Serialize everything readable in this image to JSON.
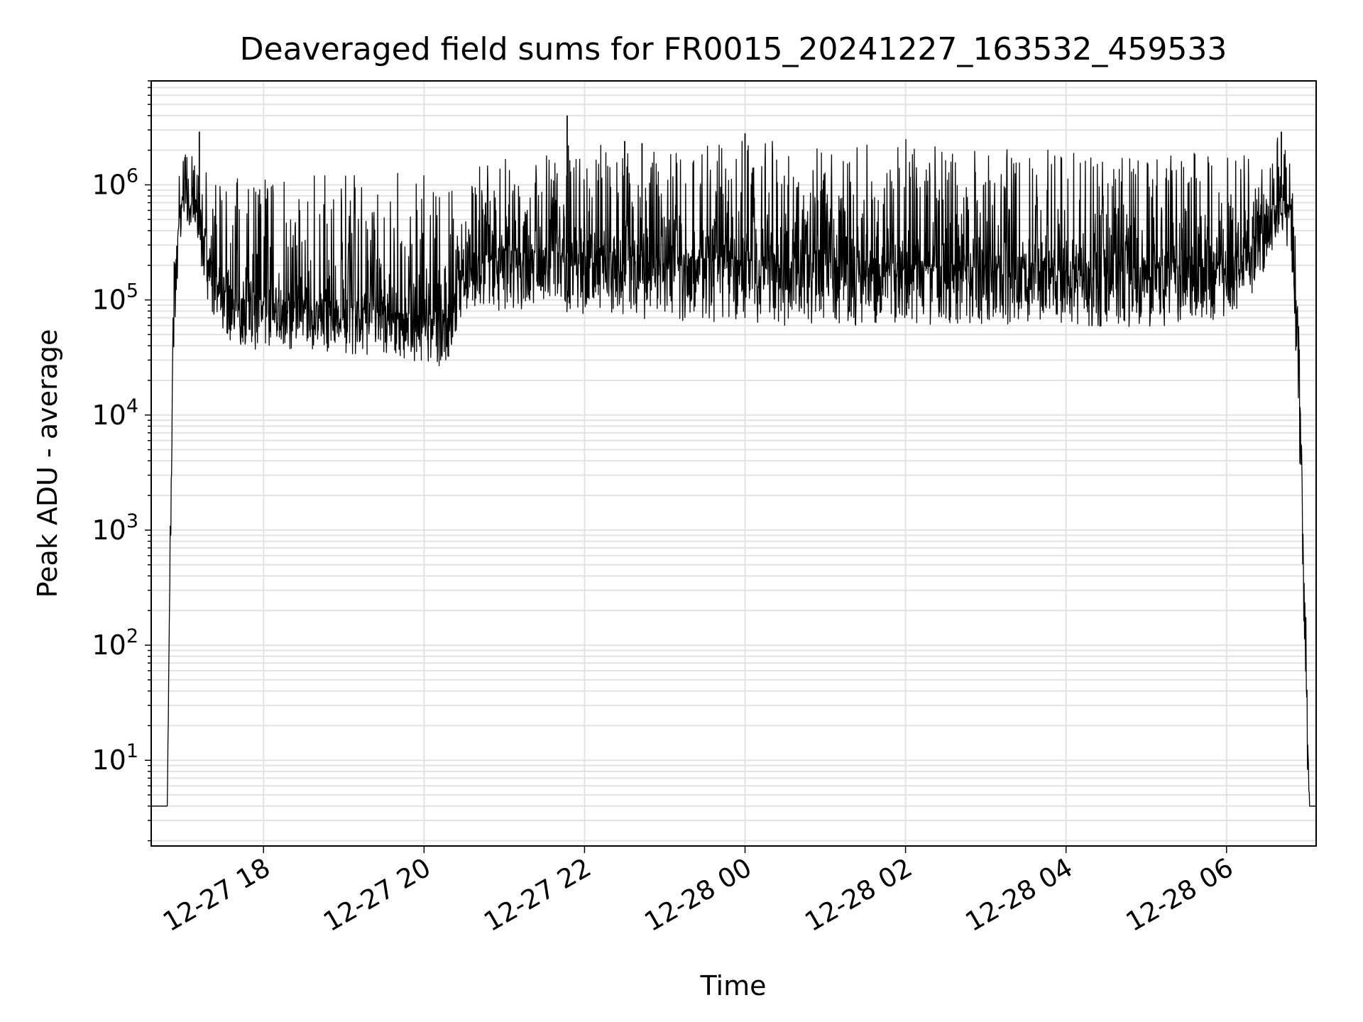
{
  "chart_data": {
    "type": "line",
    "title": "Deaveraged field sums for FR0015_20241227_163532_459533",
    "xlabel": "Time",
    "ylabel": "Peak ADU - average",
    "y_scale": "log",
    "ylim": [
      1.8,
      8000000
    ],
    "xlim": [
      "2024-12-27 16:36",
      "2024-12-28 07:07"
    ],
    "grid": true,
    "grid_minor": true,
    "line_color": "#000000",
    "x_ticks": [
      {
        "t": "2024-12-27 18:00",
        "label": "12-27 18"
      },
      {
        "t": "2024-12-27 20:00",
        "label": "12-27 20"
      },
      {
        "t": "2024-12-27 22:00",
        "label": "12-27 22"
      },
      {
        "t": "2024-12-28 00:00",
        "label": "12-28 00"
      },
      {
        "t": "2024-12-28 02:00",
        "label": "12-28 02"
      },
      {
        "t": "2024-12-28 04:00",
        "label": "12-28 04"
      },
      {
        "t": "2024-12-28 06:00",
        "label": "12-28 06"
      }
    ],
    "y_ticks": [
      {
        "value": 10,
        "base": "10",
        "exp": "1"
      },
      {
        "value": 100,
        "base": "10",
        "exp": "2"
      },
      {
        "value": 1000,
        "base": "10",
        "exp": "3"
      },
      {
        "value": 10000,
        "base": "10",
        "exp": "4"
      },
      {
        "value": 100000,
        "base": "10",
        "exp": "5"
      },
      {
        "value": 1000000,
        "base": "10",
        "exp": "6"
      }
    ],
    "series": [
      {
        "x": [
          "2024-12-27 16:36",
          "2024-12-27 16:40",
          "2024-12-27 16:44",
          "2024-12-27 16:48",
          "2024-12-27 16:52",
          "2024-12-27 16:56",
          "2024-12-27 17:00",
          "2024-12-27 17:05",
          "2024-12-27 17:10",
          "2024-12-27 17:15",
          "2024-12-27 17:20",
          "2024-12-27 17:25",
          "2024-12-27 17:30",
          "2024-12-27 17:35",
          "2024-12-27 17:40",
          "2024-12-27 17:45",
          "2024-12-27 18:00",
          "2024-12-27 18:30",
          "2024-12-27 19:00",
          "2024-12-27 19:30",
          "2024-12-27 20:00",
          "2024-12-27 20:15",
          "2024-12-27 20:20",
          "2024-12-27 20:25",
          "2024-12-27 20:30",
          "2024-12-27 20:40",
          "2024-12-27 21:00",
          "2024-12-27 21:30",
          "2024-12-27 22:00",
          "2024-12-27 23:00",
          "2024-12-28 00:00",
          "2024-12-28 01:00",
          "2024-12-28 02:00",
          "2024-12-28 03:00",
          "2024-12-28 04:00",
          "2024-12-28 05:00",
          "2024-12-28 05:30",
          "2024-12-28 06:00",
          "2024-12-28 06:15",
          "2024-12-28 06:30",
          "2024-12-28 06:40",
          "2024-12-28 06:48",
          "2024-12-28 06:52",
          "2024-12-28 06:56",
          "2024-12-28 07:00",
          "2024-12-28 07:02",
          "2024-12-28 07:04",
          "2024-12-28 07:07"
        ],
        "min": [
          4,
          4,
          4,
          4,
          10000,
          200000,
          500000,
          400000,
          300000,
          150000,
          80000,
          50000,
          45000,
          42000,
          40000,
          38000,
          36000,
          34000,
          33000,
          32000,
          28000,
          25000,
          28000,
          60000,
          70000,
          80000,
          80000,
          75000,
          70000,
          65000,
          60000,
          60000,
          60000,
          60000,
          55000,
          58000,
          60000,
          70000,
          90000,
          200000,
          400000,
          200000,
          20000,
          1000,
          10,
          4,
          4,
          4
        ],
        "median": [
          4,
          4,
          4,
          4,
          50000,
          500000,
          800000,
          700000,
          600000,
          400000,
          250000,
          150000,
          120000,
          110000,
          105000,
          100000,
          95000,
          90000,
          85000,
          80000,
          70000,
          65000,
          70000,
          150000,
          180000,
          200000,
          250000,
          260000,
          250000,
          230000,
          220000,
          210000,
          200000,
          190000,
          180000,
          190000,
          195000,
          210000,
          250000,
          500000,
          800000,
          600000,
          100000,
          5000,
          30,
          4,
          4,
          4
        ],
        "max": [
          4,
          4,
          4,
          4,
          150000,
          1200000,
          2000000,
          3000000,
          1500000,
          1500000,
          1400000,
          1300000,
          1300000,
          1300000,
          1300000,
          1200000,
          1200000,
          1300000,
          1300000,
          1300000,
          1200000,
          1200000,
          1300000,
          1400000,
          1500000,
          1600000,
          1800000,
          2000000,
          2500000,
          2000000,
          2800000,
          2000000,
          2500000,
          2200000,
          2000000,
          1800000,
          2000000,
          2200000,
          1800000,
          1800000,
          2800000,
          1500000,
          400000,
          20000,
          100,
          4,
          4,
          4
        ],
        "spikes": [
          {
            "t": "2024-12-27 17:12",
            "v": 2900000
          },
          {
            "t": "2024-12-27 21:47",
            "v": 4000000
          },
          {
            "t": "2024-12-27 22:30",
            "v": 2400000
          },
          {
            "t": "2024-12-27 22:43",
            "v": 2300000
          },
          {
            "t": "2024-12-28 00:00",
            "v": 2800000
          },
          {
            "t": "2024-12-28 06:41",
            "v": 2900000
          }
        ]
      }
    ]
  }
}
